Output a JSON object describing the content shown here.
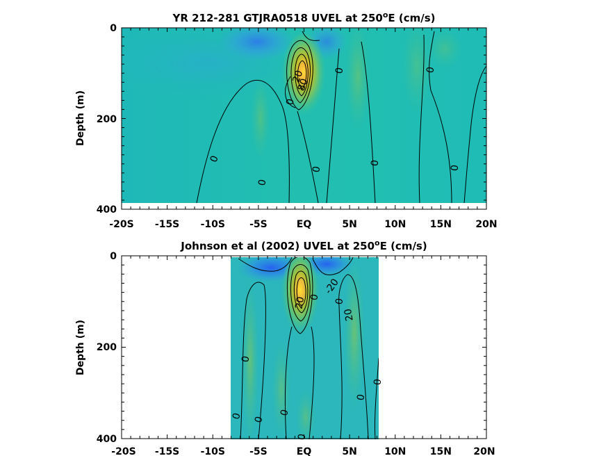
{
  "chart_data": [
    {
      "type": "heatmap",
      "title": "YR 212-281 GTJRA0518 UVEL at 250",
      "title_sup": "o",
      "title_tail": "E (cm/s)",
      "ylabel": "Depth (m)",
      "xlabel": "",
      "xlim": [
        -20,
        20
      ],
      "ylim": [
        0,
        400
      ],
      "y_reversed": true,
      "x_ticks": [
        -20,
        -15,
        -10,
        -5,
        0,
        5,
        10,
        15,
        20
      ],
      "x_tick_labels": [
        "-20S",
        "-15S",
        "-10S",
        "-5S",
        "EQ",
        "5N",
        "10N",
        "15N",
        "20N"
      ],
      "y_ticks": [
        0,
        200,
        400
      ],
      "y_tick_labels": [
        "0",
        "200",
        "400"
      ],
      "data_extent": {
        "x": [
          -20,
          20
        ],
        "y": [
          0,
          385
        ]
      },
      "grid": false,
      "colormap": "parula",
      "features": [
        {
          "kind": "jet_core",
          "x": -0.5,
          "y": 90,
          "value": 100
        },
        {
          "kind": "weak_westward",
          "x": 1.5,
          "y": 20,
          "value": -20
        }
      ],
      "contour_labels": [
        {
          "text": "20",
          "x": -0.6,
          "y": 110
        },
        {
          "text": "80",
          "x": -0.2,
          "y": 125
        },
        {
          "text": "0",
          "x": -1.2,
          "y": 160
        },
        {
          "text": "0",
          "x": 4.0,
          "y": 95
        },
        {
          "text": "0",
          "x": 14.0,
          "y": 95
        },
        {
          "text": "0",
          "x": -9.5,
          "y": 285
        },
        {
          "text": "0",
          "x": -4.3,
          "y": 340
        },
        {
          "text": "0",
          "x": 1.3,
          "y": 310
        },
        {
          "text": "0",
          "x": 7.7,
          "y": 295
        },
        {
          "text": "0",
          "x": 16.5,
          "y": 305
        }
      ]
    },
    {
      "type": "heatmap",
      "title": "Johnson et al (2002) UVEL at 250",
      "title_sup": "o",
      "title_tail": "E (cm/s)",
      "ylabel": "Depth (m)",
      "xlabel": "",
      "xlim": [
        -20,
        20
      ],
      "ylim": [
        0,
        400
      ],
      "y_reversed": true,
      "x_ticks": [
        -20,
        -15,
        -10,
        -5,
        0,
        5,
        10,
        15,
        20
      ],
      "x_tick_labels": [
        "-20S",
        "-15S",
        "-10S",
        "-5S",
        "EQ",
        "5N",
        "10N",
        "15N",
        "20N"
      ],
      "y_ticks": [
        0,
        200,
        400
      ],
      "y_tick_labels": [
        "0",
        "200",
        "400"
      ],
      "data_extent": {
        "x": [
          -8,
          8.3
        ],
        "y": [
          0,
          400
        ]
      },
      "grid": false,
      "colormap": "parula",
      "features": [
        {
          "kind": "jet_core",
          "x": -0.2,
          "y": 70,
          "value": 100
        },
        {
          "kind": "weak_westward",
          "x": 2.5,
          "y": 20,
          "value": -20
        }
      ],
      "contour_labels": [
        {
          "text": "-20",
          "x": 2.9,
          "y": 60
        },
        {
          "text": "20",
          "x": -0.3,
          "y": 95
        },
        {
          "text": "0",
          "x": 1.6,
          "y": 90
        },
        {
          "text": "0",
          "x": 4.0,
          "y": 100
        },
        {
          "text": "20",
          "x": 5.0,
          "y": 150
        },
        {
          "text": "0",
          "x": -6.2,
          "y": 225
        },
        {
          "text": "0",
          "x": 8.0,
          "y": 275
        },
        {
          "text": "0",
          "x": 6.3,
          "y": 310
        },
        {
          "text": "0",
          "x": -7.4,
          "y": 350
        },
        {
          "text": "0",
          "x": -4.8,
          "y": 360
        },
        {
          "text": "0",
          "x": -2.0,
          "y": 345
        },
        {
          "text": "0",
          "x": 0.0,
          "y": 395
        }
      ]
    }
  ]
}
